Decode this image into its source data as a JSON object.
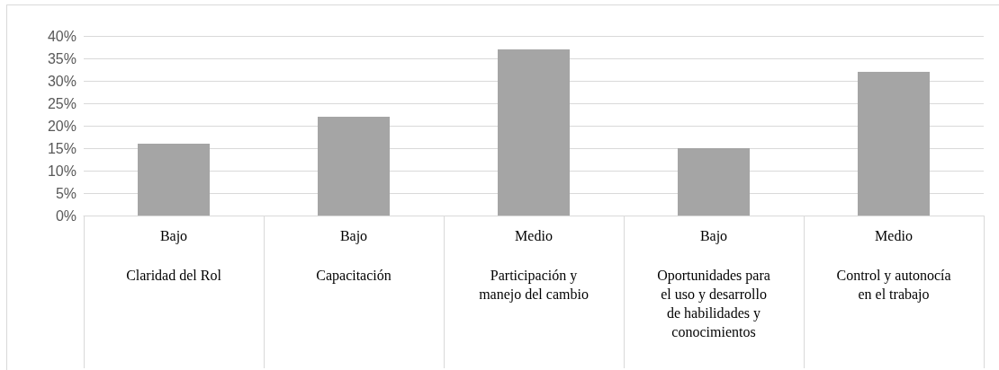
{
  "chart_data": {
    "type": "bar",
    "categories": [
      "Bajo\nClaridad del Rol",
      "Bajo\nCapacitación",
      "Medio\nParticipación y\nmanejo del cambio",
      "Bajo\nOportunidades para\nel uso y desarrollo\nde habilidades y\nconocimientos",
      "Medio\nControl y autonocía\nen el trabajo"
    ],
    "values": [
      16,
      22,
      37,
      15,
      32
    ],
    "color": "#a5a5a5",
    "ylim": [
      0,
      40
    ],
    "yticks": [
      {
        "value": 0,
        "label": "0%"
      },
      {
        "value": 5,
        "label": "5%"
      },
      {
        "value": 10,
        "label": "10%"
      },
      {
        "value": 15,
        "label": "15%"
      },
      {
        "value": 20,
        "label": "20%"
      },
      {
        "value": 25,
        "label": "25%"
      },
      {
        "value": 30,
        "label": "30%"
      },
      {
        "value": 35,
        "label": "35%"
      },
      {
        "value": 40,
        "label": "40%"
      }
    ],
    "grid": "y"
  }
}
